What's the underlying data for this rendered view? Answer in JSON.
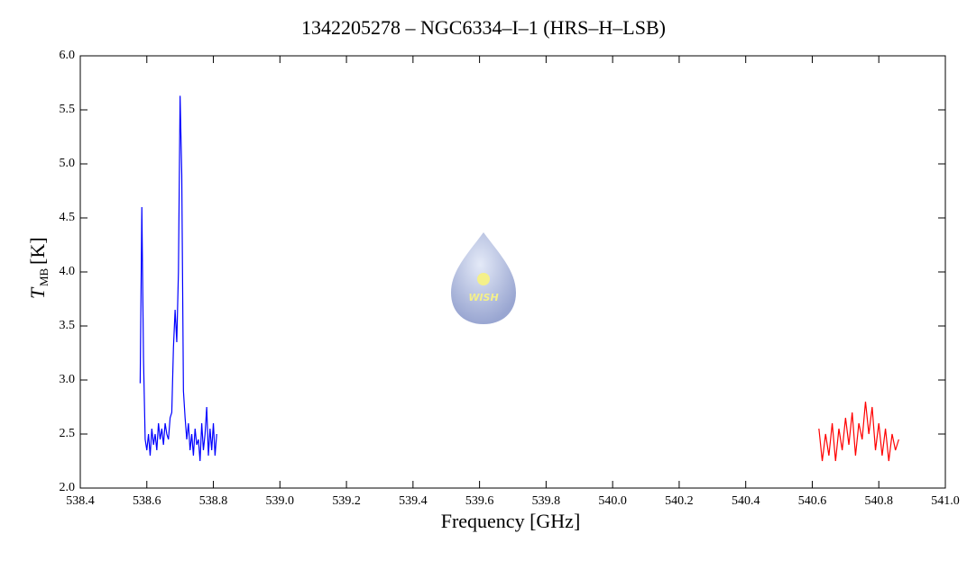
{
  "chart_data": {
    "type": "line",
    "title": "1342205278 – NGC6334–I–1 (HRS–H–LSB)",
    "xlabel": "Frequency [GHz]",
    "ylabel": {
      "main": "T",
      "sub": "MB",
      "unit": "[K]"
    },
    "logo_text": "WISH",
    "xlim": [
      538.4,
      541.0
    ],
    "xticks": [
      538.4,
      538.6,
      538.8,
      {
        "value": 539.0,
        "label": "539.0"
      },
      539.2,
      539.4,
      539.6,
      539.8,
      {
        "value": 540.0,
        "label": "540.0"
      },
      540.2,
      540.4,
      540.6,
      540.8,
      {
        "value": 541.0,
        "label": "541.0"
      }
    ],
    "ylim": [
      2.0,
      6.0
    ],
    "yticks": [
      {
        "value": 2.0,
        "label": "2.0"
      },
      2.5,
      {
        "value": 3.0,
        "label": "3.0"
      },
      3.5,
      {
        "value": 4.0,
        "label": "4.0"
      },
      4.5,
      {
        "value": 5.0,
        "label": "5.0"
      },
      5.5,
      {
        "value": 6.0,
        "label": "6.0"
      }
    ],
    "series": [
      {
        "color": "#0000ff",
        "x": [
          538.58,
          538.585,
          538.59,
          538.595,
          538.6,
          538.605,
          538.61,
          538.615,
          538.62,
          538.625,
          538.63,
          538.635,
          538.64,
          538.645,
          538.65,
          538.655,
          538.66,
          538.665,
          538.67,
          538.675,
          538.68,
          538.685,
          538.69,
          538.695,
          538.7,
          538.705,
          538.71,
          538.715,
          538.72,
          538.725,
          538.73,
          538.735,
          538.74,
          538.745,
          538.75,
          538.755,
          538.76,
          538.765,
          538.77,
          538.775,
          538.78,
          538.785,
          538.79,
          538.795,
          538.8,
          538.805,
          538.81
        ],
        "values": [
          2.97,
          4.6,
          3.2,
          2.45,
          2.35,
          2.5,
          2.3,
          2.55,
          2.4,
          2.5,
          2.35,
          2.6,
          2.45,
          2.55,
          2.4,
          2.6,
          2.5,
          2.45,
          2.65,
          2.7,
          3.3,
          3.65,
          3.35,
          4.0,
          5.63,
          4.9,
          2.9,
          2.65,
          2.45,
          2.6,
          2.35,
          2.5,
          2.3,
          2.55,
          2.4,
          2.45,
          2.25,
          2.6,
          2.35,
          2.5,
          2.75,
          2.3,
          2.55,
          2.35,
          2.6,
          2.3,
          2.5
        ]
      },
      {
        "color": "#ff0000",
        "x": [
          540.62,
          540.63,
          540.64,
          540.65,
          540.66,
          540.67,
          540.68,
          540.69,
          540.7,
          540.71,
          540.72,
          540.73,
          540.74,
          540.75,
          540.76,
          540.77,
          540.78,
          540.79,
          540.8,
          540.81,
          540.82,
          540.83,
          540.84,
          540.85,
          540.86
        ],
        "values": [
          2.55,
          2.25,
          2.5,
          2.3,
          2.6,
          2.25,
          2.55,
          2.35,
          2.65,
          2.4,
          2.7,
          2.3,
          2.6,
          2.45,
          2.8,
          2.5,
          2.75,
          2.35,
          2.6,
          2.3,
          2.55,
          2.25,
          2.5,
          2.35,
          2.45
        ]
      }
    ]
  }
}
